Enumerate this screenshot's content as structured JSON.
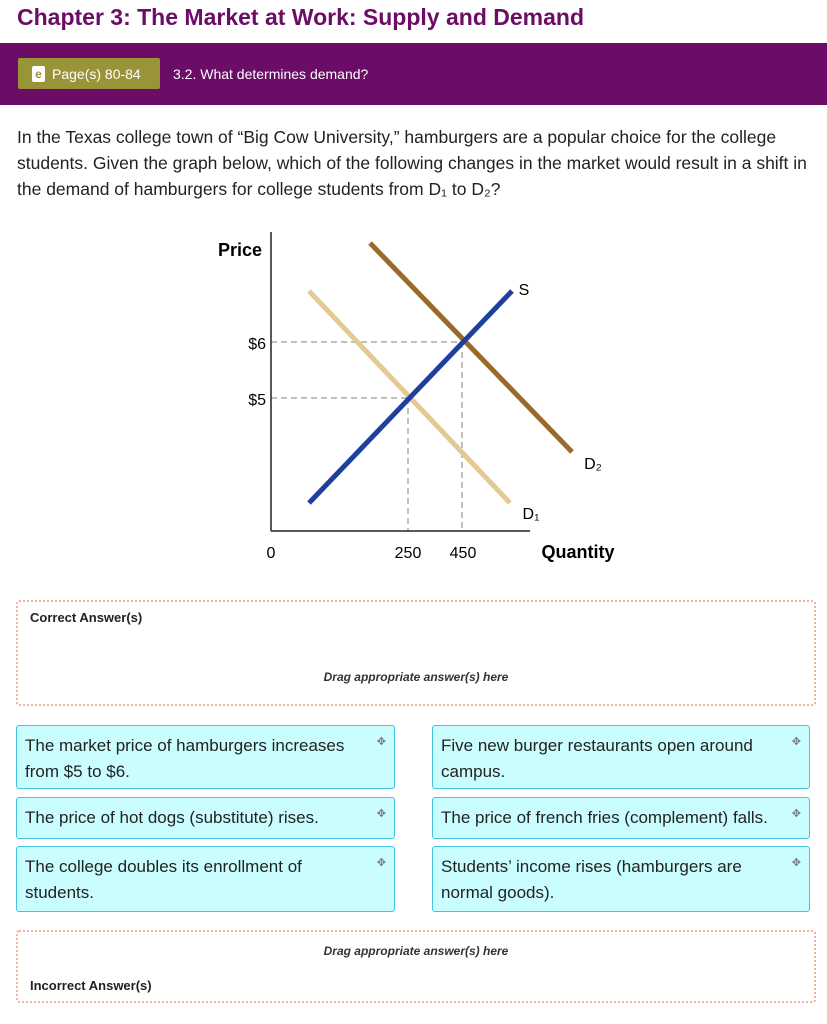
{
  "header": {
    "title": "Chapter 3: The Market at Work: Supply and Demand",
    "pages_label": "Page(s) 80-84",
    "section": "3.2. What determines demand?"
  },
  "question": "In the Texas college town of “Big Cow University,” hamburgers are a popular choice for the college students. Given the graph below, which of the following changes in the market would result in a shift in the demand of hamburgers for college students from D₁ to D₂?",
  "graph": {
    "y_label": "Price",
    "x_label": "Quantity",
    "origin": "0",
    "price_ticks": [
      "$6",
      "$5"
    ],
    "quantity_ticks": [
      "250",
      "450"
    ],
    "curves": {
      "supply": "S",
      "d1": "D₁",
      "d2": "D₂"
    },
    "colors": {
      "supply": "#1f3fa0",
      "d1": "#e5c994",
      "d2": "#9a6a2a"
    }
  },
  "correct_zone": {
    "label": "Correct Answer(s)",
    "hint": "Drag appropriate answer(s) here"
  },
  "incorrect_zone": {
    "label": "Incorrect Answer(s)",
    "hint": "Drag appropriate answer(s) here"
  },
  "answers": [
    "The market price of hamburgers increases from $5 to $6.",
    "Five new burger restaurants open around campus.",
    "The price of hot dogs (substitute) rises.",
    "The price of french fries (complement) falls.",
    "The college doubles its enrollment of students.",
    "Students’ income rises (hamburgers are normal goods)."
  ],
  "move_icon": "✥"
}
